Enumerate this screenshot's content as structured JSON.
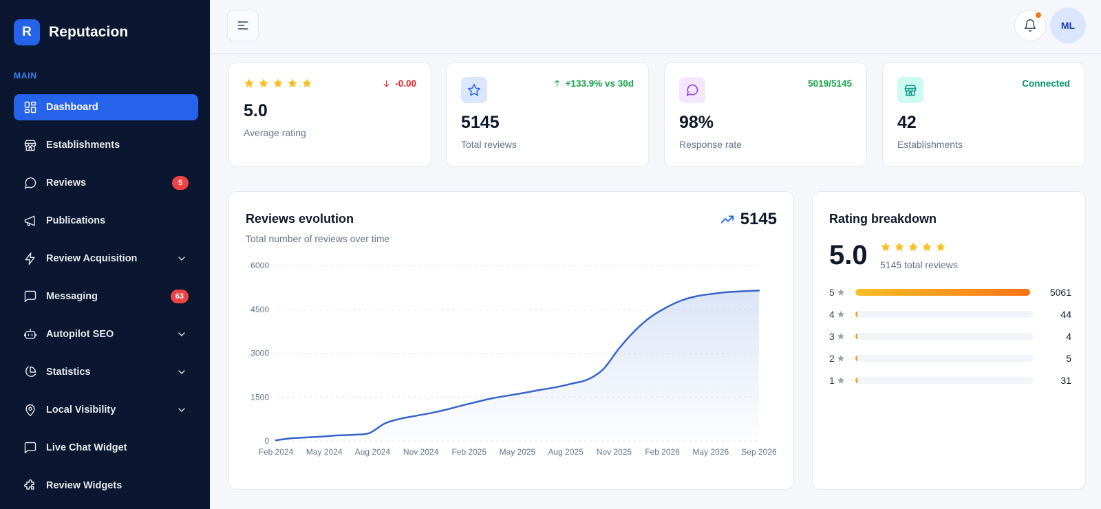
{
  "app": {
    "logo_letter": "R",
    "name": "Reputacion"
  },
  "sidebar": {
    "section_label": "MAIN",
    "items": [
      {
        "label": "Dashboard",
        "icon": "grid-icon",
        "active": true
      },
      {
        "label": "Establishments",
        "icon": "store-icon"
      },
      {
        "label": "Reviews",
        "icon": "message-circle-icon",
        "badge": "5"
      },
      {
        "label": "Publications",
        "icon": "megaphone-icon"
      },
      {
        "label": "Review Acquisition",
        "icon": "bolt-icon",
        "expandable": true
      },
      {
        "label": "Messaging",
        "icon": "message-square-icon",
        "badge": "63"
      },
      {
        "label": "Autopilot SEO",
        "icon": "bot-icon",
        "expandable": true
      },
      {
        "label": "Statistics",
        "icon": "pie-chart-icon",
        "expandable": true
      },
      {
        "label": "Local Visibility",
        "icon": "map-pin-icon",
        "expandable": true
      },
      {
        "label": "Live Chat Widget",
        "icon": "chat-icon"
      },
      {
        "label": "Review Widgets",
        "icon": "puzzle-icon"
      }
    ]
  },
  "header": {
    "avatar_initials": "ML"
  },
  "stats": [
    {
      "value": "5.0",
      "label": "Average rating",
      "trend": "-0.00",
      "trend_color": "#dc2626"
    },
    {
      "value": "5145",
      "label": "Total reviews",
      "trend": "+133.9% vs 30d",
      "trend_color": "#16a34a",
      "icon": "star-outline-icon",
      "icon_bg": "#dbe7fe",
      "icon_color": "#2563eb"
    },
    {
      "value": "98%",
      "label": "Response rate",
      "trend": "5019/5145",
      "trend_color": "#16a34a",
      "icon": "message-icon",
      "icon_bg": "#f3e8ff",
      "icon_color": "#9333ea"
    },
    {
      "value": "42",
      "label": "Establishments",
      "trend": "Connected",
      "trend_color": "#059669",
      "icon": "store-icon",
      "icon_bg": "#ccfbf1",
      "icon_color": "#0d9488"
    }
  ],
  "evolution": {
    "title": "Reviews evolution",
    "subtitle": "Total number of reviews over time",
    "total": "5145"
  },
  "chart_data": {
    "type": "area",
    "title": "Reviews evolution",
    "subtitle": "Total number of reviews over time",
    "x_tick_labels": [
      "Feb 2024",
      "May 2024",
      "Aug 2024",
      "Nov 2024",
      "Feb 2025",
      "May 2025",
      "Aug 2025",
      "Nov 2025",
      "Feb 2026",
      "May 2026",
      "Sep 2026"
    ],
    "y_ticks": [
      0,
      1500,
      3000,
      4500,
      6000
    ],
    "ylim": [
      0,
      6000
    ],
    "grid": true,
    "x": [
      "2024-02",
      "2024-03",
      "2024-04",
      "2024-05",
      "2024-06",
      "2024-07",
      "2024-08",
      "2024-09",
      "2024-10",
      "2024-11",
      "2024-12",
      "2025-01",
      "2025-02",
      "2025-03",
      "2025-04",
      "2025-05",
      "2025-06",
      "2025-07",
      "2025-08",
      "2025-09",
      "2025-10",
      "2025-11",
      "2025-12",
      "2026-01",
      "2026-02",
      "2026-03",
      "2026-04",
      "2026-05",
      "2026-06",
      "2026-07",
      "2026-08",
      "2026-09"
    ],
    "values": [
      20,
      90,
      120,
      150,
      190,
      210,
      270,
      600,
      760,
      860,
      960,
      1080,
      1220,
      1350,
      1470,
      1560,
      1650,
      1750,
      1840,
      1960,
      2100,
      2450,
      3150,
      3750,
      4220,
      4550,
      4800,
      4950,
      5030,
      5090,
      5120,
      5145
    ]
  },
  "breakdown": {
    "title": "Rating breakdown",
    "score": "5.0",
    "total_text": "5145 total reviews",
    "rows": [
      {
        "stars": "5",
        "count": "5061",
        "fraction": 0.984
      },
      {
        "stars": "4",
        "count": "44",
        "fraction": 0.009
      },
      {
        "stars": "3",
        "count": "4",
        "fraction": 0.001
      },
      {
        "stars": "2",
        "count": "5",
        "fraction": 0.001
      },
      {
        "stars": "1",
        "count": "31",
        "fraction": 0.006
      }
    ]
  }
}
